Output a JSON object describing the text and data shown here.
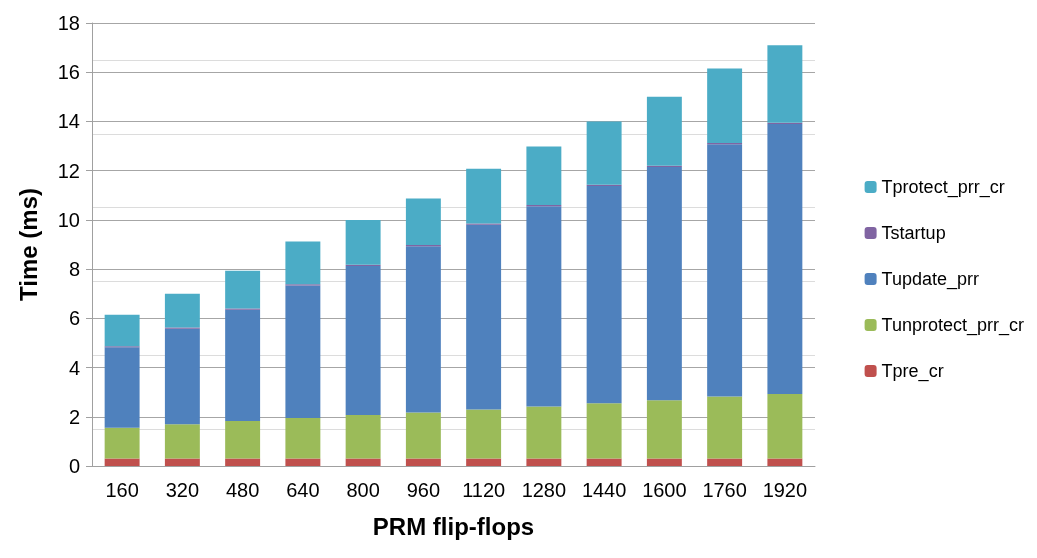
{
  "chart_data": {
    "type": "bar",
    "stacked": true,
    "xlabel": "PRM flip-flops",
    "ylabel": "Time (ms)",
    "categories": [
      "160",
      "320",
      "480",
      "640",
      "800",
      "960",
      "1120",
      "1280",
      "1440",
      "1600",
      "1760",
      "1920"
    ],
    "series": [
      {
        "name": "Tpre_cr",
        "color": "#c0504d",
        "values": [
          0.3,
          0.3,
          0.3,
          0.3,
          0.3,
          0.3,
          0.3,
          0.3,
          0.3,
          0.3,
          0.3,
          0.3
        ]
      },
      {
        "name": "Tunprotect_prr_cr",
        "color": "#9bbb59",
        "values": [
          1.25,
          1.4,
          1.53,
          1.65,
          1.77,
          1.87,
          2.0,
          2.12,
          2.25,
          2.37,
          2.52,
          2.63
        ]
      },
      {
        "name": "Tupdate_prr",
        "color": "#4f81bd",
        "values": [
          3.27,
          3.88,
          4.52,
          5.38,
          6.06,
          6.76,
          7.5,
          8.13,
          8.83,
          9.48,
          10.25,
          10.97
        ]
      },
      {
        "name": "Tstartup",
        "color": "#8064a2",
        "values": [
          0.05,
          0.05,
          0.05,
          0.05,
          0.05,
          0.05,
          0.05,
          0.05,
          0.05,
          0.05,
          0.05,
          0.05
        ]
      },
      {
        "name": "Tprotect_prr_cr",
        "color": "#4bacc6",
        "values": [
          1.28,
          1.37,
          1.53,
          1.74,
          1.82,
          1.89,
          2.23,
          2.38,
          2.57,
          2.8,
          3.03,
          3.15
        ]
      }
    ],
    "ylim": [
      0,
      18
    ],
    "yticks": [
      0,
      2,
      4,
      6,
      8,
      10,
      12,
      14,
      16,
      18
    ],
    "grid": "y",
    "legend": "right"
  }
}
